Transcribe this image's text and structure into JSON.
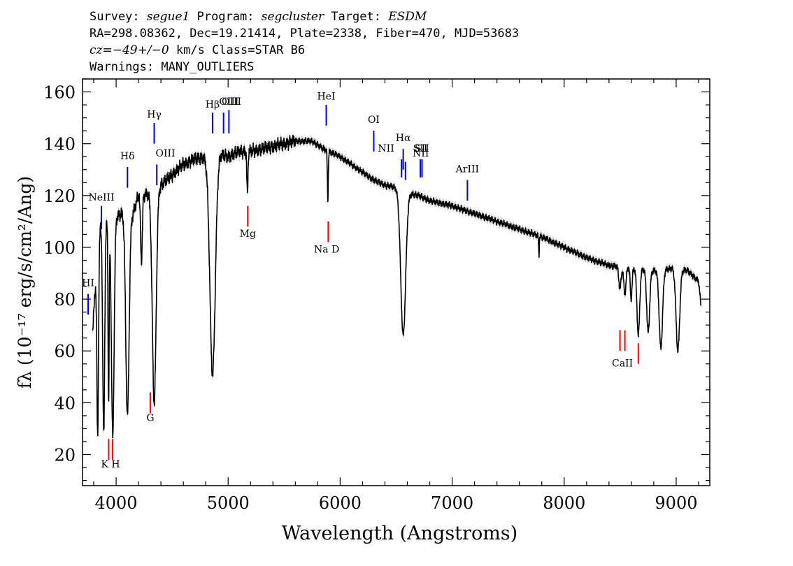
{
  "header": {
    "survey_label": "Survey: ",
    "survey_value": "segue1",
    "program_label": " Program: ",
    "program_value": "segcluster",
    "target_label": " Target: ",
    "target_value": "ESDM",
    "line2": "RA=298.08362, Dec=19.21414, Plate=2338, Fiber=470, MJD=53683",
    "cz_label": "cz=",
    "cz_value": "−49+/−0",
    "line3_rest": " km/s Class=STAR B6",
    "line4": "Warnings: MANY_OUTLIERS"
  },
  "chart_data": {
    "type": "line",
    "xlabel": "Wavelength (Angstroms)",
    "ylabel": "fλ (10⁻¹⁷ erg/s/cm²/Ang)",
    "xlim": [
      3700,
      9300
    ],
    "ylim": [
      8,
      165
    ],
    "x_ticks": [
      4000,
      5000,
      6000,
      7000,
      8000,
      9000
    ],
    "y_ticks": [
      20,
      40,
      60,
      80,
      100,
      120,
      140,
      160
    ],
    "grid": false,
    "colors": {
      "spectrum": "#000000",
      "error_band": "#b4b4b4",
      "emission": "#0000ff",
      "absorption": "#ff0000"
    },
    "continuum": [
      [
        3790,
        68
      ],
      [
        3820,
        88
      ],
      [
        3860,
        108
      ],
      [
        3900,
        110
      ],
      [
        4000,
        112
      ],
      [
        4050,
        113
      ],
      [
        4150,
        113
      ],
      [
        4200,
        120
      ],
      [
        4300,
        121
      ],
      [
        4330,
        120
      ],
      [
        4400,
        124
      ],
      [
        4500,
        128
      ],
      [
        4600,
        132
      ],
      [
        4700,
        134
      ],
      [
        4800,
        135
      ],
      [
        4900,
        136
      ],
      [
        5000,
        135
      ],
      [
        5100,
        137
      ],
      [
        5200,
        137
      ],
      [
        5400,
        139
      ],
      [
        5600,
        141
      ],
      [
        5750,
        141
      ],
      [
        5850,
        138
      ],
      [
        6000,
        135
      ],
      [
        6100,
        132
      ],
      [
        6200,
        129
      ],
      [
        6300,
        126
      ],
      [
        6400,
        124
      ],
      [
        6500,
        123
      ],
      [
        6600,
        121
      ],
      [
        6700,
        120
      ],
      [
        6800,
        118
      ],
      [
        7000,
        116
      ],
      [
        7200,
        113
      ],
      [
        7400,
        110
      ],
      [
        7600,
        107
      ],
      [
        7800,
        104
      ],
      [
        8000,
        100
      ],
      [
        8200,
        96
      ],
      [
        8400,
        93
      ],
      [
        8600,
        92
      ],
      [
        8800,
        91
      ],
      [
        9000,
        92
      ],
      [
        9100,
        91
      ],
      [
        9150,
        89
      ],
      [
        9200,
        87
      ],
      [
        9220,
        78
      ]
    ],
    "absorption_dips": [
      [
        3835,
        26,
        7
      ],
      [
        3889,
        28,
        9
      ],
      [
        3933,
        40,
        5
      ],
      [
        3970,
        27,
        12
      ],
      [
        4101,
        35,
        15
      ],
      [
        4226,
        95,
        8
      ],
      [
        4340,
        40,
        17
      ],
      [
        4861,
        51,
        24
      ],
      [
        5172,
        120,
        5
      ],
      [
        5890,
        118,
        4
      ],
      [
        6563,
        66,
        22
      ],
      [
        7775,
        97,
        3
      ],
      [
        8498,
        84,
        10
      ],
      [
        8542,
        82,
        10
      ],
      [
        8598,
        80,
        8
      ],
      [
        8662,
        66,
        12
      ],
      [
        8750,
        67,
        13
      ],
      [
        8863,
        61,
        15
      ],
      [
        9015,
        60,
        16
      ]
    ],
    "emission_lines": [
      {
        "label": "HI",
        "x": 3750,
        "y0": 74,
        "y1": 82,
        "lx": 3750,
        "ly": 85
      },
      {
        "label": "NeIII",
        "x": 3869,
        "y0": 107,
        "y1": 116,
        "lx": 3869,
        "ly": 118
      },
      {
        "label": "Hδ",
        "x": 4101,
        "y0": 123,
        "y1": 131,
        "lx": 4101,
        "ly": 134
      },
      {
        "label": "Hγ",
        "x": 4340,
        "y0": 140,
        "y1": 148,
        "lx": 4340,
        "ly": 150
      },
      {
        "label": "OIII",
        "x": 4363,
        "y0": 124,
        "y1": 132,
        "lx": 4440,
        "ly": 135
      },
      {
        "label": "Hβ",
        "x": 4861,
        "y0": 144,
        "y1": 152,
        "lx": 4861,
        "ly": 154
      },
      {
        "label": "OIII",
        "x": 4959,
        "y0": 144,
        "y1": 152,
        "lx": 5030,
        "ly": 155
      },
      {
        "label": "OIII",
        "x": 5007,
        "y0": 144,
        "y1": 153,
        "lx": 5007,
        "ly": 155
      },
      {
        "label": "HeI",
        "x": 5876,
        "y0": 147,
        "y1": 155,
        "lx": 5876,
        "ly": 157
      },
      {
        "label": "OI",
        "x": 6300,
        "y0": 137,
        "y1": 145,
        "lx": 6300,
        "ly": 148
      },
      {
        "label": "NII",
        "x": 6548,
        "y0": 127,
        "y1": 134,
        "lx": 6410,
        "ly": 137
      },
      {
        "label": "Hα",
        "x": 6563,
        "y0": 130,
        "y1": 138,
        "lx": 6563,
        "ly": 141
      },
      {
        "label": "NII",
        "x": 6583,
        "y0": 126,
        "y1": 133,
        "lx": 6720,
        "ly": 135
      },
      {
        "label": "SII",
        "x": 6716,
        "y0": 127,
        "y1": 134,
        "lx": 6716,
        "ly": 137
      },
      {
        "label": "SII",
        "x": 6731,
        "y0": 127,
        "y1": 134,
        "lx": 6731,
        "ly": 137
      },
      {
        "label": "ArIII",
        "x": 7136,
        "y0": 118,
        "y1": 126,
        "lx": 7136,
        "ly": 129
      }
    ],
    "absorption_lines": [
      {
        "label": "K",
        "x": 3934,
        "y0": 18,
        "y1": 26,
        "lx": 3934,
        "ly": 15
      },
      {
        "label": "H",
        "x": 3969,
        "y0": 18,
        "y1": 26,
        "lx": 3969,
        "ly": 15
      },
      {
        "label": "G",
        "x": 4305,
        "y0": 36,
        "y1": 44,
        "lx": 4305,
        "ly": 33
      },
      {
        "label": "Mg",
        "x": 5175,
        "y0": 108,
        "y1": 116,
        "lx": 5175,
        "ly": 104
      },
      {
        "label": "Na",
        "x": 5894,
        "y0": 102,
        "y1": 110,
        "lx": 5820,
        "ly": 98
      },
      {
        "label": "D",
        "x": 5894,
        "y0": 102,
        "y1": 110,
        "lx": 5980,
        "ly": 98
      },
      {
        "label": "CaII",
        "x": 8498,
        "y0": 60,
        "y1": 68,
        "lx": 8498,
        "ly": 54
      },
      {
        "label": "CaII",
        "x": 8542,
        "y0": 60,
        "y1": 68,
        "lx": 8542,
        "ly": 54
      },
      {
        "label": "CaII",
        "x": 8662,
        "y0": 55,
        "y1": 63,
        "lx": 8662,
        "ly": 54
      }
    ],
    "absorption_label_text": {
      "KH": "K H",
      "NaD": "Na  D",
      "CaII": "CaII"
    }
  }
}
